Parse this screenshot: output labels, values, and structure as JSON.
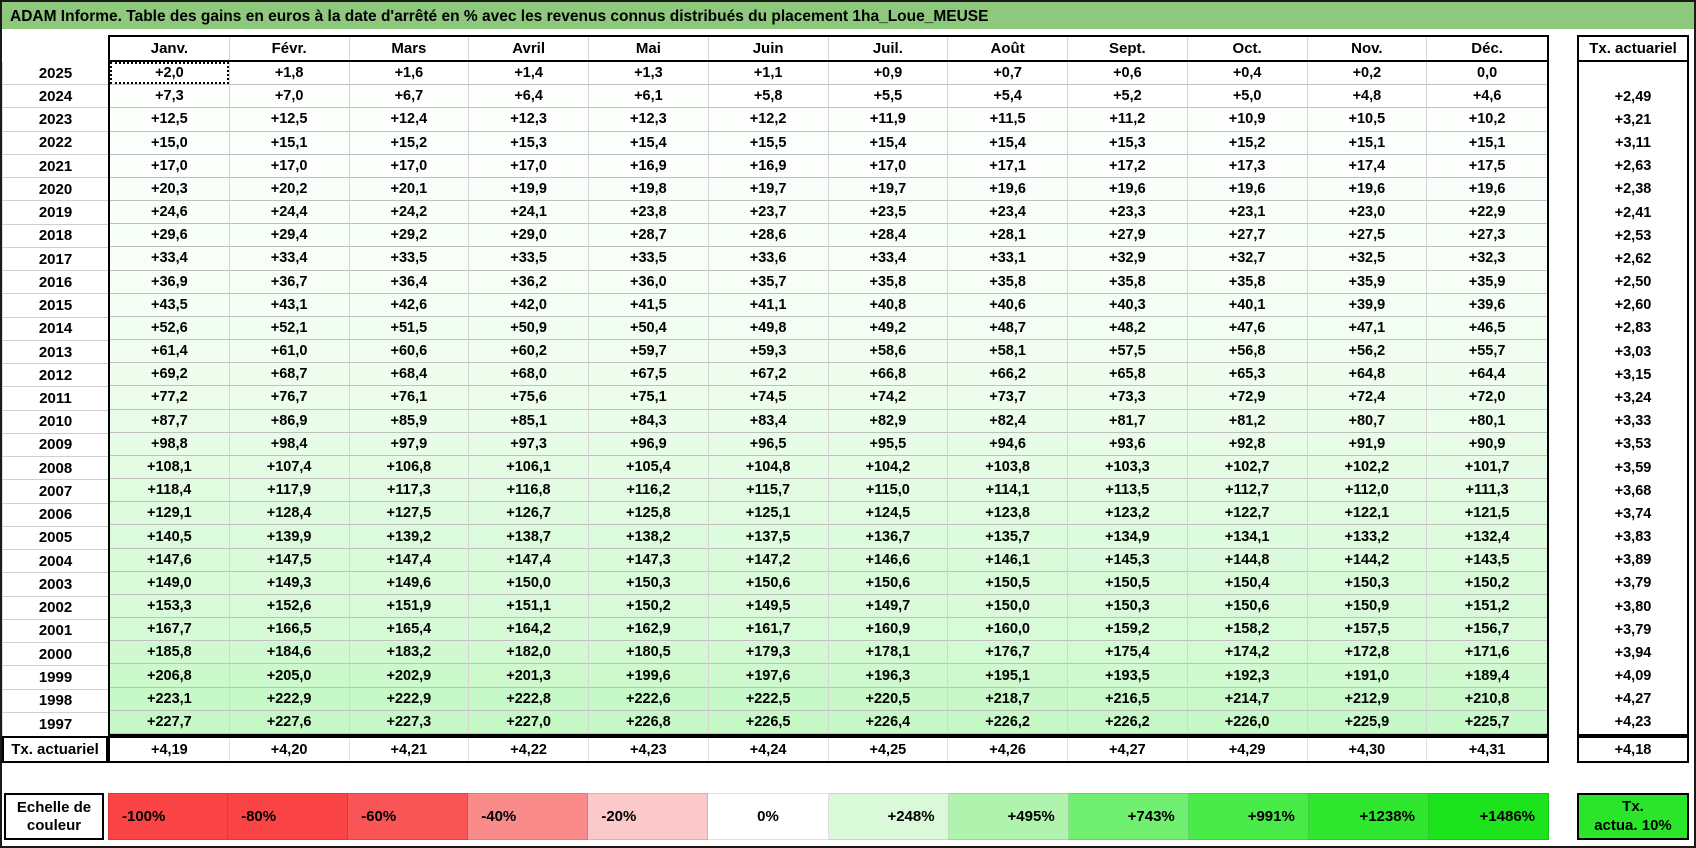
{
  "title": "ADAM Informe. Table des gains en euros à la date d'arrêté en % avec les revenus connus distribués du placement 1ha_Loue_MEUSE",
  "colors": {
    "title_bg": "#8DC87D",
    "max_green": "#1EE31E",
    "grid_line": "#BFBFBF"
  },
  "columns": {
    "months": [
      "Janv.",
      "Févr.",
      "Mars",
      "Avril",
      "Mai",
      "Juin",
      "Juil.",
      "Août",
      "Sept.",
      "Oct.",
      "Nov.",
      "Déc."
    ],
    "tx_header": "Tx. actuariel"
  },
  "rows": [
    {
      "year": "2025",
      "values": [
        "+2,0",
        "+1,8",
        "+1,6",
        "+1,4",
        "+1,3",
        "+1,1",
        "+0,9",
        "+0,7",
        "+0,6",
        "+0,4",
        "+0,2",
        "0,0"
      ],
      "tx": ""
    },
    {
      "year": "2024",
      "values": [
        "+7,3",
        "+7,0",
        "+6,7",
        "+6,4",
        "+6,1",
        "+5,8",
        "+5,5",
        "+5,4",
        "+5,2",
        "+5,0",
        "+4,8",
        "+4,6"
      ],
      "tx": "+2,49"
    },
    {
      "year": "2023",
      "values": [
        "+12,5",
        "+12,5",
        "+12,4",
        "+12,3",
        "+12,3",
        "+12,2",
        "+11,9",
        "+11,5",
        "+11,2",
        "+10,9",
        "+10,5",
        "+10,2"
      ],
      "tx": "+3,21"
    },
    {
      "year": "2022",
      "values": [
        "+15,0",
        "+15,1",
        "+15,2",
        "+15,3",
        "+15,4",
        "+15,5",
        "+15,4",
        "+15,4",
        "+15,3",
        "+15,2",
        "+15,1",
        "+15,1"
      ],
      "tx": "+3,11"
    },
    {
      "year": "2021",
      "values": [
        "+17,0",
        "+17,0",
        "+17,0",
        "+17,0",
        "+16,9",
        "+16,9",
        "+17,0",
        "+17,1",
        "+17,2",
        "+17,3",
        "+17,4",
        "+17,5"
      ],
      "tx": "+2,63"
    },
    {
      "year": "2020",
      "values": [
        "+20,3",
        "+20,2",
        "+20,1",
        "+19,9",
        "+19,8",
        "+19,7",
        "+19,7",
        "+19,6",
        "+19,6",
        "+19,6",
        "+19,6",
        "+19,6"
      ],
      "tx": "+2,38"
    },
    {
      "year": "2019",
      "values": [
        "+24,6",
        "+24,4",
        "+24,2",
        "+24,1",
        "+23,8",
        "+23,7",
        "+23,5",
        "+23,4",
        "+23,3",
        "+23,1",
        "+23,0",
        "+22,9"
      ],
      "tx": "+2,41"
    },
    {
      "year": "2018",
      "values": [
        "+29,6",
        "+29,4",
        "+29,2",
        "+29,0",
        "+28,7",
        "+28,6",
        "+28,4",
        "+28,1",
        "+27,9",
        "+27,7",
        "+27,5",
        "+27,3"
      ],
      "tx": "+2,53"
    },
    {
      "year": "2017",
      "values": [
        "+33,4",
        "+33,4",
        "+33,5",
        "+33,5",
        "+33,5",
        "+33,6",
        "+33,4",
        "+33,1",
        "+32,9",
        "+32,7",
        "+32,5",
        "+32,3"
      ],
      "tx": "+2,62"
    },
    {
      "year": "2016",
      "values": [
        "+36,9",
        "+36,7",
        "+36,4",
        "+36,2",
        "+36,0",
        "+35,7",
        "+35,8",
        "+35,8",
        "+35,8",
        "+35,8",
        "+35,9",
        "+35,9"
      ],
      "tx": "+2,50"
    },
    {
      "year": "2015",
      "values": [
        "+43,5",
        "+43,1",
        "+42,6",
        "+42,0",
        "+41,5",
        "+41,1",
        "+40,8",
        "+40,6",
        "+40,3",
        "+40,1",
        "+39,9",
        "+39,6"
      ],
      "tx": "+2,60"
    },
    {
      "year": "2014",
      "values": [
        "+52,6",
        "+52,1",
        "+51,5",
        "+50,9",
        "+50,4",
        "+49,8",
        "+49,2",
        "+48,7",
        "+48,2",
        "+47,6",
        "+47,1",
        "+46,5"
      ],
      "tx": "+2,83"
    },
    {
      "year": "2013",
      "values": [
        "+61,4",
        "+61,0",
        "+60,6",
        "+60,2",
        "+59,7",
        "+59,3",
        "+58,6",
        "+58,1",
        "+57,5",
        "+56,8",
        "+56,2",
        "+55,7"
      ],
      "tx": "+3,03"
    },
    {
      "year": "2012",
      "values": [
        "+69,2",
        "+68,7",
        "+68,4",
        "+68,0",
        "+67,5",
        "+67,2",
        "+66,8",
        "+66,2",
        "+65,8",
        "+65,3",
        "+64,8",
        "+64,4"
      ],
      "tx": "+3,15"
    },
    {
      "year": "2011",
      "values": [
        "+77,2",
        "+76,7",
        "+76,1",
        "+75,6",
        "+75,1",
        "+74,5",
        "+74,2",
        "+73,7",
        "+73,3",
        "+72,9",
        "+72,4",
        "+72,0"
      ],
      "tx": "+3,24"
    },
    {
      "year": "2010",
      "values": [
        "+87,7",
        "+86,9",
        "+85,9",
        "+85,1",
        "+84,3",
        "+83,4",
        "+82,9",
        "+82,4",
        "+81,7",
        "+81,2",
        "+80,7",
        "+80,1"
      ],
      "tx": "+3,33"
    },
    {
      "year": "2009",
      "values": [
        "+98,8",
        "+98,4",
        "+97,9",
        "+97,3",
        "+96,9",
        "+96,5",
        "+95,5",
        "+94,6",
        "+93,6",
        "+92,8",
        "+91,9",
        "+90,9"
      ],
      "tx": "+3,53"
    },
    {
      "year": "2008",
      "values": [
        "+108,1",
        "+107,4",
        "+106,8",
        "+106,1",
        "+105,4",
        "+104,8",
        "+104,2",
        "+103,8",
        "+103,3",
        "+102,7",
        "+102,2",
        "+101,7"
      ],
      "tx": "+3,59"
    },
    {
      "year": "2007",
      "values": [
        "+118,4",
        "+117,9",
        "+117,3",
        "+116,8",
        "+116,2",
        "+115,7",
        "+115,0",
        "+114,1",
        "+113,5",
        "+112,7",
        "+112,0",
        "+111,3"
      ],
      "tx": "+3,68"
    },
    {
      "year": "2006",
      "values": [
        "+129,1",
        "+128,4",
        "+127,5",
        "+126,7",
        "+125,8",
        "+125,1",
        "+124,5",
        "+123,8",
        "+123,2",
        "+122,7",
        "+122,1",
        "+121,5"
      ],
      "tx": "+3,74"
    },
    {
      "year": "2005",
      "values": [
        "+140,5",
        "+139,9",
        "+139,2",
        "+138,7",
        "+138,2",
        "+137,5",
        "+136,7",
        "+135,7",
        "+134,9",
        "+134,1",
        "+133,2",
        "+132,4"
      ],
      "tx": "+3,83"
    },
    {
      "year": "2004",
      "values": [
        "+147,6",
        "+147,5",
        "+147,4",
        "+147,4",
        "+147,3",
        "+147,2",
        "+146,6",
        "+146,1",
        "+145,3",
        "+144,8",
        "+144,2",
        "+143,5"
      ],
      "tx": "+3,89"
    },
    {
      "year": "2003",
      "values": [
        "+149,0",
        "+149,3",
        "+149,6",
        "+150,0",
        "+150,3",
        "+150,6",
        "+150,6",
        "+150,5",
        "+150,5",
        "+150,4",
        "+150,3",
        "+150,2"
      ],
      "tx": "+3,79"
    },
    {
      "year": "2002",
      "values": [
        "+153,3",
        "+152,6",
        "+151,9",
        "+151,1",
        "+150,2",
        "+149,5",
        "+149,7",
        "+150,0",
        "+150,3",
        "+150,6",
        "+150,9",
        "+151,2"
      ],
      "tx": "+3,80"
    },
    {
      "year": "2001",
      "values": [
        "+167,7",
        "+166,5",
        "+165,4",
        "+164,2",
        "+162,9",
        "+161,7",
        "+160,9",
        "+160,0",
        "+159,2",
        "+158,2",
        "+157,5",
        "+156,7"
      ],
      "tx": "+3,79"
    },
    {
      "year": "2000",
      "values": [
        "+185,8",
        "+184,6",
        "+183,2",
        "+182,0",
        "+180,5",
        "+179,3",
        "+178,1",
        "+176,7",
        "+175,4",
        "+174,2",
        "+172,8",
        "+171,6"
      ],
      "tx": "+3,94"
    },
    {
      "year": "1999",
      "values": [
        "+206,8",
        "+205,0",
        "+202,9",
        "+201,3",
        "+199,6",
        "+197,6",
        "+196,3",
        "+195,1",
        "+193,5",
        "+192,3",
        "+191,0",
        "+189,4"
      ],
      "tx": "+4,09"
    },
    {
      "year": "1998",
      "values": [
        "+223,1",
        "+222,9",
        "+222,9",
        "+222,8",
        "+222,6",
        "+222,5",
        "+220,5",
        "+218,7",
        "+216,5",
        "+214,7",
        "+212,9",
        "+210,8"
      ],
      "tx": "+4,27"
    },
    {
      "year": "1997",
      "values": [
        "+227,7",
        "+227,6",
        "+227,3",
        "+227,0",
        "+226,8",
        "+226,5",
        "+226,4",
        "+226,2",
        "+226,2",
        "+226,0",
        "+225,9",
        "+225,7"
      ],
      "tx": "+4,23"
    }
  ],
  "summary_row": {
    "label": "Tx. actuariel",
    "values": [
      "+4,19",
      "+4,20",
      "+4,21",
      "+4,22",
      "+4,23",
      "+4,24",
      "+4,25",
      "+4,26",
      "+4,27",
      "+4,29",
      "+4,30",
      "+4,31"
    ],
    "tx": "+4,18"
  },
  "color_scale": {
    "label": "Echelle de couleur",
    "stops": [
      {
        "label": "-100%",
        "color": "#F94345"
      },
      {
        "label": "-80%",
        "color": "#F94345"
      },
      {
        "label": "-60%",
        "color": "#F95557"
      },
      {
        "label": "-40%",
        "color": "#F98B8B"
      },
      {
        "label": "-20%",
        "color": "#FBC9C9"
      },
      {
        "label": "0%",
        "color": "#FFFFFF"
      },
      {
        "label": "+248%",
        "color": "#D9F9D9"
      },
      {
        "label": "+495%",
        "color": "#AFF3AF"
      },
      {
        "label": "+743%",
        "color": "#70EF70"
      },
      {
        "label": "+991%",
        "color": "#49EB49"
      },
      {
        "label": "+1238%",
        "color": "#30E72F"
      },
      {
        "label": "+1486%",
        "color": "#1CE31C"
      }
    ],
    "tx": {
      "line1": "Tx.",
      "line2": "actua. 10%",
      "color": "#2BE52B"
    }
  }
}
